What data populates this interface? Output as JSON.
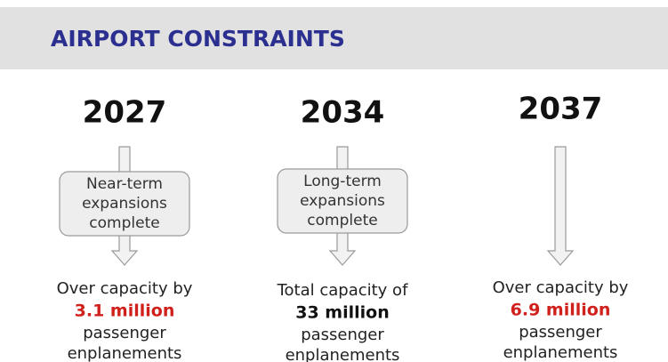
{
  "header": {
    "title": "AIRPORT CONSTRAINTS"
  },
  "columns": [
    {
      "year": "2027",
      "box": [
        "Near-term",
        "expansions",
        "complete"
      ],
      "intro": "Over capacity by",
      "highlight": "3.1 million",
      "highlight_color": "#d0201c",
      "tail": [
        "passenger",
        "enplanements"
      ]
    },
    {
      "year": "2034",
      "box": [
        "Long-term",
        "expansions",
        "complete"
      ],
      "intro": "Total capacity of",
      "highlight": "33 million",
      "highlight_color": "#111111",
      "tail": [
        "passenger",
        "enplanements"
      ]
    },
    {
      "year": "2037",
      "intro": "Over capacity by",
      "highlight": "6.9 million",
      "highlight_color": "#d0201c",
      "tail": [
        "passenger",
        "enplanements"
      ]
    }
  ]
}
